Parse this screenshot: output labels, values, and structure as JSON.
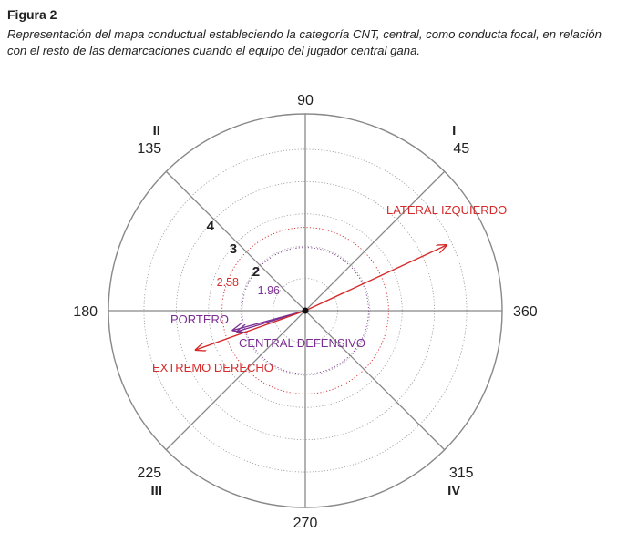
{
  "figure": {
    "label": "Figura 2",
    "caption": "Representación del mapa conductual estableciendo la categoría CNT, central, como conducta focal, en relación con el resto de las demarcaciones cuando el equipo del jugador central gana."
  },
  "chart_data": {
    "type": "polar-vector",
    "angle_ticks": [
      "90",
      "45",
      "360",
      "315",
      "270",
      "225",
      "180",
      "135"
    ],
    "angle_tick_values": [
      90,
      45,
      360,
      315,
      270,
      225,
      180,
      135
    ],
    "quadrants": [
      "I",
      "II",
      "III",
      "IV"
    ],
    "quadrant_angles": [
      45,
      135,
      225,
      315
    ],
    "radial_ticks": [
      "2",
      "3",
      "4"
    ],
    "radial_tick_values": [
      2,
      3,
      4
    ],
    "r_max": 6.1,
    "significance_circles": [
      {
        "label": "1.96",
        "r": 1.96,
        "color": "#7a2e91"
      },
      {
        "label": "2.58",
        "r": 2.58,
        "color": "#d62a2a"
      }
    ],
    "vectors": [
      {
        "name": "LATERAL IZQUIERDO",
        "angle": 24.9,
        "length": 4.83,
        "color": "#d62a2a"
      },
      {
        "name": "PORTERO",
        "angle": 195.2,
        "length": 2.33,
        "color": "#7a2e91"
      },
      {
        "name": "CENTRAL DEFENSIVO",
        "angle": 197.0,
        "length": 2.21,
        "color": "#7a2e91"
      },
      {
        "name": "EXTREMO DERECHO",
        "angle": 199.7,
        "length": 3.61,
        "color": "#d62a2a"
      }
    ]
  }
}
